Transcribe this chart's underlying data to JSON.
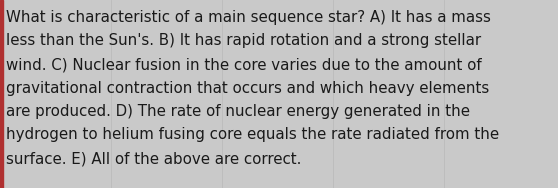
{
  "lines": [
    "What is characteristic of a main sequence star? A) It has a mass",
    "less than the Sun's. B) It has rapid rotation and a strong stellar",
    "wind. C) Nuclear fusion in the core varies due to the amount of",
    "gravitational contraction that occurs and which heavy elements",
    "are produced. D) The rate of nuclear energy generated in the",
    "hydrogen to helium fusing core equals the rate radiated from the",
    "surface. E) All of the above are correct."
  ],
  "background_color": "#c9c9c9",
  "text_color": "#1a1a1a",
  "left_border_color": "#b03030",
  "font_size": 10.8,
  "font_family": "DejaVu Sans"
}
